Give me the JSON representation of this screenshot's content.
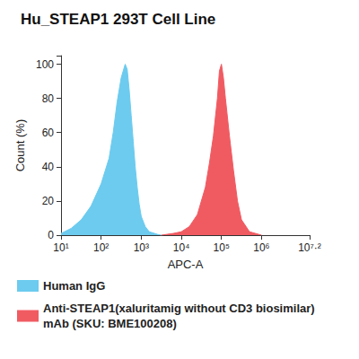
{
  "chart_data": {
    "type": "area",
    "title": "Hu_STEAP1 293T Cell Line",
    "x_label": "APC-A",
    "y_label": "Count (%)",
    "log": "x",
    "grid": false,
    "legend": "bottom",
    "xlim": [
      10,
      15848932
    ],
    "xticks": [
      {
        "value": 10,
        "label": "10¹"
      },
      {
        "value": 100,
        "label": "10²"
      },
      {
        "value": 1000,
        "label": "10³"
      },
      {
        "value": 10000,
        "label": "10⁴"
      },
      {
        "value": 100000,
        "label": "10⁵"
      },
      {
        "value": 1000000,
        "label": "10⁶"
      },
      {
        "value": 15848932,
        "label": "10⁷·²"
      }
    ],
    "ylim": [
      0,
      105
    ],
    "yticks": [
      0,
      20,
      40,
      60,
      80,
      100
    ],
    "series": [
      {
        "name": "Human IgG",
        "color": "#6ccbef",
        "x": [
          10,
          18,
          32,
          56,
          100,
          158,
          200,
          251,
          316,
          398,
          447,
          501,
          562,
          631,
          708,
          794,
          891,
          1000,
          1259,
          1585,
          2512,
          3162
        ],
        "values": [
          1,
          4,
          9,
          17,
          30,
          45,
          60,
          78,
          92,
          100,
          97,
          85,
          70,
          55,
          40,
          28,
          18,
          11,
          5,
          2,
          0.5,
          0
        ]
      },
      {
        "name": "Anti-STEAP1(xaluritamig without CD3 biosimilar) mAb (SKU: BME100208)",
        "color": "#f05b62",
        "x": [
          3162,
          6310,
          10000,
          15849,
          25119,
          39811,
          50119,
          63096,
          79433,
          89125,
          100000,
          112202,
          125893,
          158489,
          199526,
          251189,
          316228,
          501187,
          1000000
        ],
        "values": [
          0,
          1,
          2,
          5,
          12,
          28,
          42,
          58,
          80,
          96,
          100,
          92,
          80,
          58,
          38,
          20,
          9,
          2,
          0
        ]
      }
    ]
  }
}
